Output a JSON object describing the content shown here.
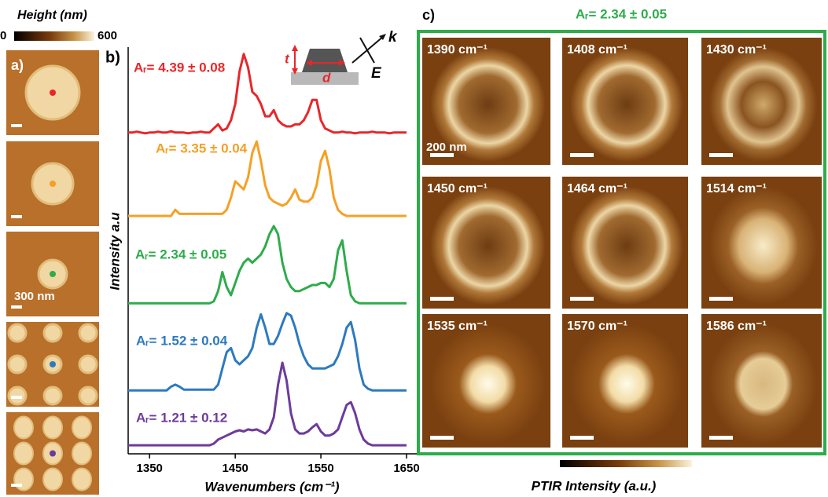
{
  "header": {
    "colorbar_title": "Height (nm)",
    "colorbar_min": "0",
    "colorbar_max": "600"
  },
  "panel_a": {
    "label": "a)",
    "scale": "300 nm"
  },
  "panel_b": {
    "label": "b)"
  },
  "inset": {
    "t": "t",
    "d": "d",
    "k": "k",
    "E": "E"
  },
  "chart_data": {
    "type": "line",
    "x_label": "Wavenumbers (cm⁻¹)",
    "y_label": "Intensity a.u",
    "x": [
      1325,
      1330,
      1335,
      1340,
      1345,
      1350,
      1355,
      1360,
      1365,
      1370,
      1375,
      1380,
      1385,
      1390,
      1395,
      1400,
      1405,
      1410,
      1415,
      1420,
      1425,
      1430,
      1435,
      1440,
      1445,
      1450,
      1455,
      1460,
      1465,
      1470,
      1475,
      1480,
      1485,
      1490,
      1495,
      1500,
      1505,
      1510,
      1515,
      1520,
      1525,
      1530,
      1535,
      1540,
      1545,
      1550,
      1555,
      1560,
      1565,
      1570,
      1575,
      1580,
      1585,
      1590,
      1595,
      1600,
      1605,
      1610,
      1615,
      1620,
      1625,
      1630,
      1635,
      1640,
      1645,
      1650
    ],
    "series": [
      {
        "name": "Aᵣ= 4.39 ± 0.08",
        "color": "#e8262a",
        "values": [
          79,
          79,
          79.2,
          79,
          78.8,
          79,
          79,
          79.2,
          79,
          79,
          79.3,
          79,
          79,
          79,
          78.8,
          79,
          79,
          79.2,
          79,
          79,
          80,
          81,
          79.5,
          80,
          82,
          86,
          94,
          98.3,
          95,
          89,
          88,
          86,
          83,
          83,
          84.5,
          82,
          81,
          80.5,
          80.5,
          81,
          81,
          82,
          84,
          87,
          87,
          82,
          80,
          79.5,
          79,
          79,
          79.2,
          79,
          79,
          78.8,
          79,
          79,
          79,
          79.2,
          79,
          79,
          79,
          78.8,
          79,
          79,
          79,
          79
        ]
      },
      {
        "name": "Aᵣ= 3.35 ± 0.04",
        "color": "#f5a025",
        "values": [
          58.5,
          58.5,
          58.5,
          58.5,
          58.5,
          58.5,
          58.5,
          58.5,
          58.5,
          58.5,
          58.5,
          60,
          59,
          59,
          59,
          59,
          59,
          59,
          59,
          59,
          59,
          59,
          59,
          60,
          63,
          67,
          66,
          65,
          68,
          74,
          76.8,
          72,
          66,
          63,
          62,
          61.5,
          61,
          61.5,
          63,
          65,
          62.5,
          62,
          62,
          63,
          66,
          72,
          74.5,
          70,
          63,
          60,
          59,
          58.5,
          58.5,
          58.5,
          58.5,
          58.5,
          58.5,
          58.5,
          58.5,
          58.5,
          58.5,
          58.5,
          58.5,
          58.5,
          58.5,
          58.5
        ]
      },
      {
        "name": "Aᵣ= 2.34 ± 0.05",
        "color": "#2eac4b",
        "values": [
          37,
          37,
          37,
          37,
          37,
          37,
          37,
          37,
          37,
          37,
          37,
          37,
          37,
          37,
          37,
          37,
          37,
          37,
          37,
          37,
          37.5,
          40,
          44.7,
          41,
          39,
          42,
          45,
          47,
          48,
          47,
          48,
          49,
          51,
          54,
          56,
          54,
          47,
          43,
          41,
          40,
          40,
          40.5,
          41,
          41.5,
          41.5,
          42,
          42,
          41,
          43,
          50,
          52.5,
          45,
          39,
          37.5,
          37,
          37,
          37,
          37,
          37,
          37,
          37,
          37,
          37,
          37,
          37,
          37
        ]
      },
      {
        "name": "Aᵣ= 1.52 ± 0.04",
        "color": "#2d7abf",
        "values": [
          15.6,
          15.6,
          15.6,
          15.6,
          15.6,
          15.6,
          15.6,
          15.6,
          15.6,
          15.6,
          16.5,
          17,
          16.5,
          15.8,
          15.8,
          15.8,
          15.8,
          15.8,
          15.8,
          15.8,
          15.8,
          17,
          21,
          25,
          26,
          23,
          22,
          23,
          24,
          26,
          31,
          34.3,
          31,
          27,
          27,
          29,
          32,
          34.6,
          34,
          31,
          27,
          24,
          22,
          21,
          21,
          21,
          21,
          21.5,
          22,
          24,
          27,
          31,
          32.4,
          28,
          21,
          17,
          16,
          15.6,
          15.6,
          15.6,
          15.6,
          15.6,
          15.6,
          15.6,
          15.6,
          15.6
        ]
      },
      {
        "name": "Aᵣ= 1.21 ± 0.12",
        "color": "#6d3b9a",
        "values": [
          2.1,
          2.1,
          2.1,
          2.1,
          2.1,
          2.1,
          2.1,
          2.1,
          2.1,
          2.1,
          2.1,
          2.1,
          2.1,
          2.1,
          2.1,
          2.1,
          2.1,
          2.1,
          2.1,
          2.1,
          2.5,
          3.5,
          4,
          4.5,
          5,
          5.5,
          5.8,
          5.5,
          6,
          5.8,
          6,
          5.5,
          5,
          6,
          9,
          17,
          22.4,
          18,
          10,
          6,
          5,
          5,
          5.5,
          6.5,
          7.3,
          5.5,
          4.5,
          4.5,
          5,
          6,
          9,
          12,
          12.7,
          10,
          6,
          3.5,
          2.5,
          2.1,
          2.1,
          2.1,
          2.1,
          2.1,
          2.1,
          2.1,
          2.1,
          2.1
        ]
      }
    ],
    "xlim": [
      1325,
      1650
    ],
    "xticks": [
      1350,
      1450,
      1550,
      1650
    ],
    "ylim": [
      0,
      100
    ]
  },
  "panel_c": {
    "label": "c)",
    "title": "Aᵣ= 2.34 ± 0.05",
    "scale": "200 nm",
    "tiles": [
      "1390 cm⁻¹",
      "1408 cm⁻¹",
      "1430 cm⁻¹",
      "1450 cm⁻¹",
      "1464 cm⁻¹",
      "1514 cm⁻¹",
      "1535 cm⁻¹",
      "1570 cm⁻¹",
      "1586 cm⁻¹"
    ],
    "colorbar_title": "PTIR Intensity (a.u.)"
  }
}
